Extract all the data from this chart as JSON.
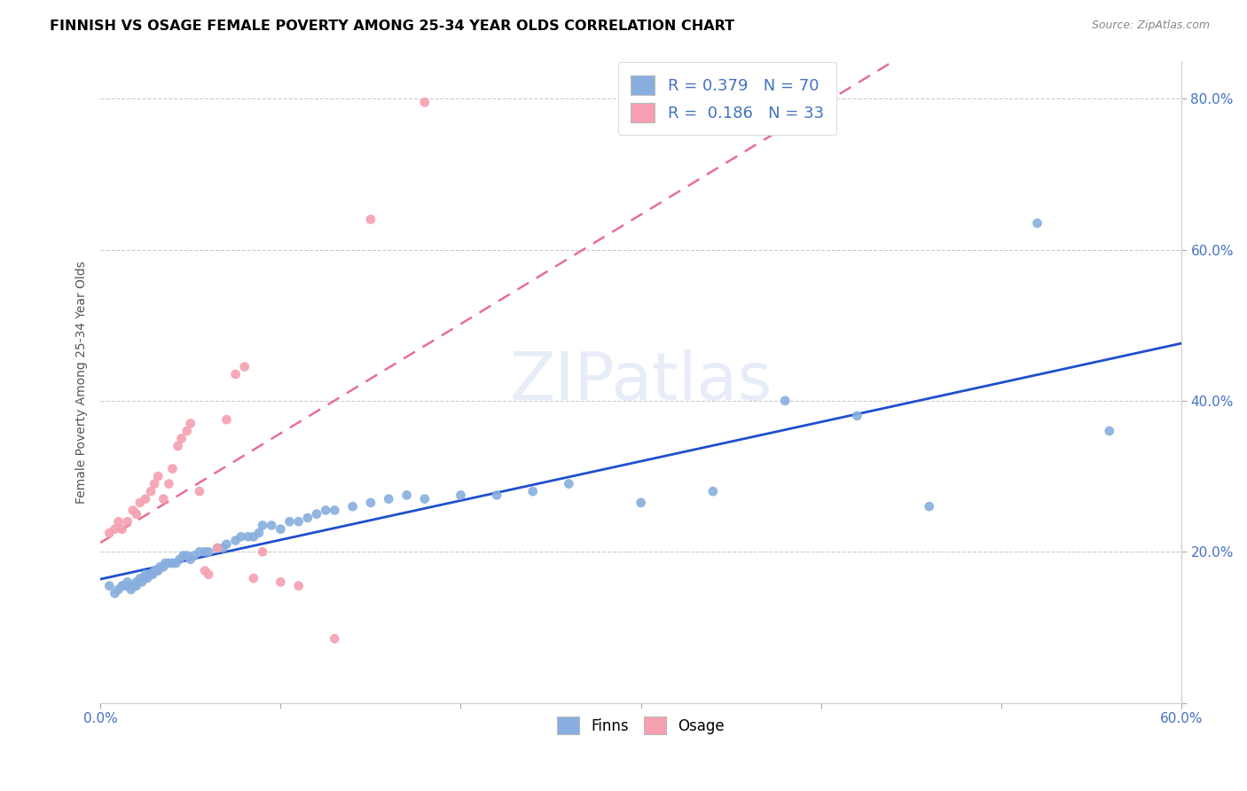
{
  "title": "FINNISH VS OSAGE FEMALE POVERTY AMONG 25-34 YEAR OLDS CORRELATION CHART",
  "source": "Source: ZipAtlas.com",
  "ylabel": "Female Poverty Among 25-34 Year Olds",
  "xlim": [
    0.0,
    0.6
  ],
  "ylim": [
    0.0,
    0.85
  ],
  "xticks": [
    0.0,
    0.1,
    0.2,
    0.3,
    0.4,
    0.5,
    0.6
  ],
  "yticks": [
    0.0,
    0.2,
    0.4,
    0.6,
    0.8
  ],
  "ytick_labels": [
    "",
    "20.0%",
    "40.0%",
    "60.0%",
    "80.0%"
  ],
  "xtick_labels": [
    "0.0%",
    "",
    "",
    "",
    "",
    "",
    "60.0%"
  ],
  "finns_color": "#87AEDE",
  "osage_color": "#F4A0B0",
  "finns_line_color": "#1F4FCC",
  "osage_line_color": "#E87090",
  "legend_text_color": "#4472C4",
  "watermark": "ZIPatlas",
  "legend_r_finns": "0.379",
  "legend_n_finns": "70",
  "legend_r_osage": "0.186",
  "legend_n_osage": "33",
  "finns_x": [
    0.005,
    0.008,
    0.01,
    0.012,
    0.013,
    0.015,
    0.015,
    0.017,
    0.018,
    0.019,
    0.02,
    0.02,
    0.022,
    0.023,
    0.024,
    0.025,
    0.026,
    0.027,
    0.028,
    0.029,
    0.03,
    0.031,
    0.032,
    0.033,
    0.035,
    0.036,
    0.038,
    0.04,
    0.042,
    0.044,
    0.046,
    0.048,
    0.05,
    0.052,
    0.055,
    0.058,
    0.06,
    0.065,
    0.068,
    0.07,
    0.075,
    0.078,
    0.082,
    0.085,
    0.088,
    0.09,
    0.095,
    0.1,
    0.105,
    0.11,
    0.115,
    0.12,
    0.125,
    0.13,
    0.14,
    0.15,
    0.16,
    0.17,
    0.18,
    0.2,
    0.22,
    0.24,
    0.26,
    0.3,
    0.34,
    0.38,
    0.42,
    0.46,
    0.52,
    0.56
  ],
  "finns_y": [
    0.155,
    0.145,
    0.15,
    0.155,
    0.155,
    0.155,
    0.16,
    0.15,
    0.155,
    0.155,
    0.155,
    0.16,
    0.165,
    0.16,
    0.165,
    0.17,
    0.165,
    0.17,
    0.17,
    0.17,
    0.175,
    0.175,
    0.175,
    0.18,
    0.18,
    0.185,
    0.185,
    0.185,
    0.185,
    0.19,
    0.195,
    0.195,
    0.19,
    0.195,
    0.2,
    0.2,
    0.2,
    0.205,
    0.205,
    0.21,
    0.215,
    0.22,
    0.22,
    0.22,
    0.225,
    0.235,
    0.235,
    0.23,
    0.24,
    0.24,
    0.245,
    0.25,
    0.255,
    0.255,
    0.26,
    0.265,
    0.27,
    0.275,
    0.27,
    0.275,
    0.275,
    0.28,
    0.29,
    0.265,
    0.28,
    0.4,
    0.38,
    0.26,
    0.635,
    0.36
  ],
  "osage_x": [
    0.005,
    0.008,
    0.01,
    0.012,
    0.015,
    0.018,
    0.02,
    0.022,
    0.025,
    0.028,
    0.03,
    0.032,
    0.035,
    0.038,
    0.04,
    0.043,
    0.045,
    0.048,
    0.05,
    0.055,
    0.058,
    0.06,
    0.065,
    0.07,
    0.075,
    0.08,
    0.085,
    0.09,
    0.1,
    0.11,
    0.13,
    0.15,
    0.18
  ],
  "osage_y": [
    0.225,
    0.23,
    0.24,
    0.23,
    0.24,
    0.255,
    0.25,
    0.265,
    0.27,
    0.28,
    0.29,
    0.3,
    0.27,
    0.29,
    0.31,
    0.34,
    0.35,
    0.36,
    0.37,
    0.28,
    0.175,
    0.17,
    0.205,
    0.375,
    0.435,
    0.445,
    0.165,
    0.2,
    0.16,
    0.155,
    0.085,
    0.64,
    0.795
  ]
}
